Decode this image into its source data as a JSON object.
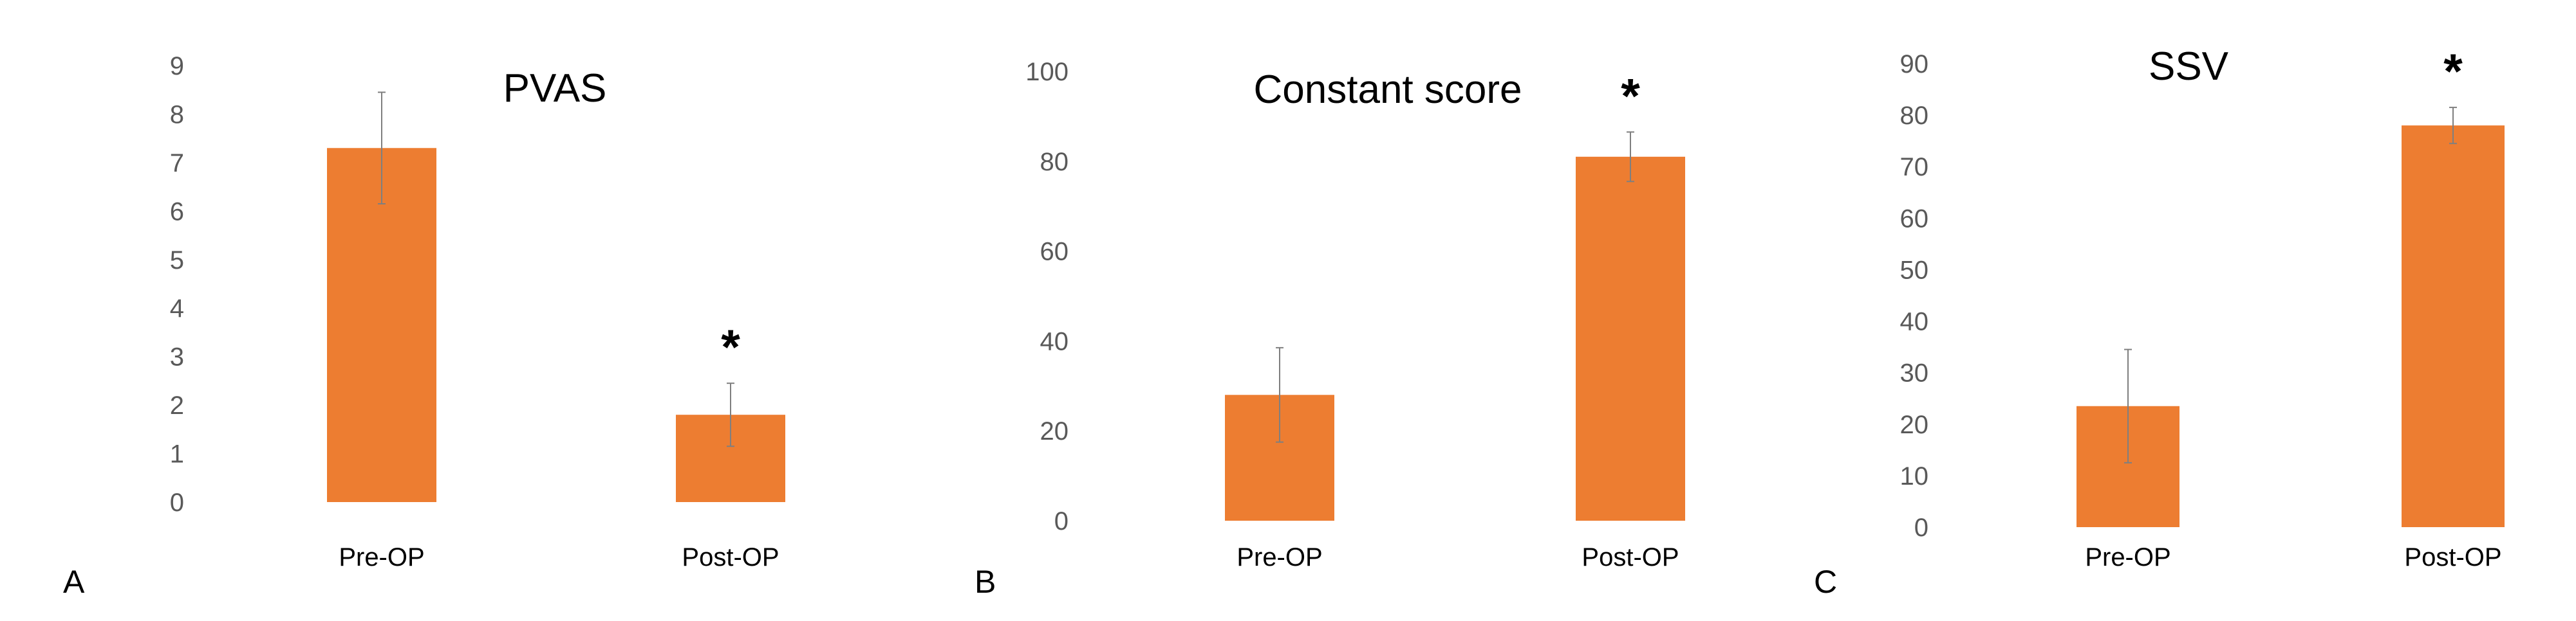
{
  "colors": {
    "bar": "#ED7D31",
    "error_bar": "#7F7F7F",
    "text": "#000000",
    "tick_text": "#595959"
  },
  "chart_data": [
    {
      "panel": "A",
      "type": "bar",
      "title": "PVAS",
      "xlabel": "",
      "ylabel": "",
      "categories": [
        "Pre-OP",
        "Post-OP"
      ],
      "values": [
        7.3,
        1.8
      ],
      "error": [
        1.15,
        0.65
      ],
      "significance": [
        "",
        "*"
      ],
      "ylim": [
        0,
        9
      ],
      "yticks": [
        0,
        1,
        2,
        3,
        4,
        5,
        6,
        7,
        8,
        9
      ],
      "grid": false,
      "legend": "none"
    },
    {
      "panel": "B",
      "type": "bar",
      "title": "Constant score",
      "xlabel": "",
      "ylabel": "",
      "categories": [
        "Pre-OP",
        "Post-OP"
      ],
      "values": [
        28,
        81
      ],
      "error": [
        10.5,
        5.5
      ],
      "significance": [
        "",
        "*"
      ],
      "ylim": [
        0,
        100
      ],
      "yticks": [
        0,
        20,
        40,
        60,
        80,
        100
      ],
      "grid": false,
      "legend": "none"
    },
    {
      "panel": "C",
      "type": "bar",
      "title": "SSV",
      "xlabel": "",
      "ylabel": "",
      "categories": [
        "Pre-OP",
        "Post-OP"
      ],
      "values": [
        23.5,
        78
      ],
      "error": [
        11,
        3.5
      ],
      "significance": [
        "",
        "*"
      ],
      "ylim": [
        0,
        90
      ],
      "yticks": [
        0,
        10,
        20,
        30,
        40,
        50,
        60,
        70,
        80,
        90
      ],
      "grid": false,
      "legend": "none"
    }
  ]
}
